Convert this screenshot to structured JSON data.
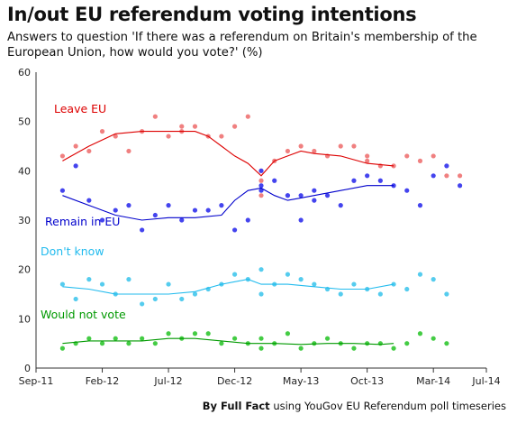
{
  "header": {
    "title": "In/out EU referendum voting intentions",
    "subtitle": "Answers to question 'If there was a referendum on Britain's membership of the European Union, how would you vote?' (%)"
  },
  "footer": {
    "brand": "By Full Fact",
    "text": " using YouGov EU Referendum poll timeseries"
  },
  "chart_data": {
    "type": "scatter",
    "x_ticks": [
      "Sep-11",
      "Feb-12",
      "Jul-12",
      "Dec-12",
      "May-13",
      "Oct-13",
      "Mar-14",
      "Jul-14"
    ],
    "xlim": [
      "Sep-11",
      "Jul-14"
    ],
    "ylim": [
      0,
      60
    ],
    "y_ticks": [
      0,
      10,
      20,
      30,
      40,
      50,
      60
    ],
    "grid": false,
    "series": [
      {
        "name": "Leave EU",
        "color": "#dd0000",
        "point_color": "#f08080",
        "points": [
          [
            "Nov-11",
            43
          ],
          [
            "Dec-11",
            45
          ],
          [
            "Jan-12",
            44
          ],
          [
            "Feb-12",
            48
          ],
          [
            "Mar-12",
            47
          ],
          [
            "Apr-12",
            44
          ],
          [
            "May-12",
            48
          ],
          [
            "Jun-12",
            51
          ],
          [
            "Jul-12",
            47
          ],
          [
            "Aug-12",
            48
          ],
          [
            "Aug-12",
            49
          ],
          [
            "Sep-12",
            49
          ],
          [
            "Oct-12",
            47
          ],
          [
            "Nov-12",
            47
          ],
          [
            "Dec-12",
            49
          ],
          [
            "Jan-13",
            51
          ],
          [
            "Feb-13",
            40
          ],
          [
            "Feb-13",
            38
          ],
          [
            "Feb-13",
            35
          ],
          [
            "Mar-13",
            42
          ],
          [
            "Apr-13",
            44
          ],
          [
            "May-13",
            45
          ],
          [
            "Jun-13",
            44
          ],
          [
            "Jul-13",
            43
          ],
          [
            "Aug-13",
            45
          ],
          [
            "Sep-13",
            45
          ],
          [
            "Oct-13",
            42
          ],
          [
            "Oct-13",
            43
          ],
          [
            "Nov-13",
            41
          ],
          [
            "Dec-13",
            41
          ],
          [
            "Jan-14",
            43
          ],
          [
            "Feb-14",
            42
          ],
          [
            "Mar-14",
            43
          ],
          [
            "Apr-14",
            39
          ],
          [
            "May-14",
            39
          ]
        ],
        "trend": [
          [
            "Nov-11",
            42
          ],
          [
            "Jan-12",
            45
          ],
          [
            "Mar-12",
            47.5
          ],
          [
            "May-12",
            48
          ],
          [
            "Jul-12",
            48
          ],
          [
            "Sep-12",
            48
          ],
          [
            "Oct-12",
            47
          ],
          [
            "Nov-12",
            45
          ],
          [
            "Dec-12",
            43
          ],
          [
            "Jan-13",
            41.5
          ],
          [
            "Feb-13",
            39
          ],
          [
            "Mar-13",
            42
          ],
          [
            "Apr-13",
            43
          ],
          [
            "May-13",
            44
          ],
          [
            "Jun-13",
            43.5
          ],
          [
            "Aug-13",
            43
          ],
          [
            "Oct-13",
            41.5
          ],
          [
            "Dec-13",
            41
          ]
        ]
      },
      {
        "name": "Remain in EU",
        "color": "#0000cc",
        "point_color": "#4444ee",
        "points": [
          [
            "Nov-11",
            36
          ],
          [
            "Dec-11",
            41
          ],
          [
            "Jan-12",
            34
          ],
          [
            "Feb-12",
            30
          ],
          [
            "Mar-12",
            32
          ],
          [
            "Apr-12",
            33
          ],
          [
            "May-12",
            28
          ],
          [
            "Jun-12",
            31
          ],
          [
            "Jul-12",
            33
          ],
          [
            "Aug-12",
            30
          ],
          [
            "Sep-12",
            32
          ],
          [
            "Oct-12",
            32
          ],
          [
            "Nov-12",
            33
          ],
          [
            "Dec-12",
            28
          ],
          [
            "Jan-13",
            30
          ],
          [
            "Feb-13",
            37
          ],
          [
            "Feb-13",
            40
          ],
          [
            "Feb-13",
            36
          ],
          [
            "Mar-13",
            38
          ],
          [
            "Apr-13",
            35
          ],
          [
            "Apr-13",
            35
          ],
          [
            "May-13",
            30
          ],
          [
            "May-13",
            35
          ],
          [
            "Jun-13",
            36
          ],
          [
            "Jun-13",
            34
          ],
          [
            "Jul-13",
            35
          ],
          [
            "Aug-13",
            33
          ],
          [
            "Sep-13",
            38
          ],
          [
            "Oct-13",
            39
          ],
          [
            "Nov-13",
            38
          ],
          [
            "Dec-13",
            37
          ],
          [
            "Jan-14",
            36
          ],
          [
            "Feb-14",
            33
          ],
          [
            "Mar-14",
            39
          ],
          [
            "Apr-14",
            41
          ],
          [
            "May-14",
            37
          ]
        ],
        "trend": [
          [
            "Nov-11",
            35
          ],
          [
            "Jan-12",
            33
          ],
          [
            "Mar-12",
            31
          ],
          [
            "May-12",
            30
          ],
          [
            "Jul-12",
            30.5
          ],
          [
            "Sep-12",
            30.5
          ],
          [
            "Nov-12",
            31
          ],
          [
            "Dec-12",
            34
          ],
          [
            "Jan-13",
            36
          ],
          [
            "Feb-13",
            36.5
          ],
          [
            "Mar-13",
            35
          ],
          [
            "Apr-13",
            34
          ],
          [
            "May-13",
            34.5
          ],
          [
            "Jun-13",
            35
          ],
          [
            "Aug-13",
            36
          ],
          [
            "Oct-13",
            37
          ],
          [
            "Dec-13",
            37
          ]
        ]
      },
      {
        "name": "Don't know",
        "color": "#22bbee",
        "point_color": "#55ccee",
        "points": [
          [
            "Nov-11",
            17
          ],
          [
            "Dec-11",
            14
          ],
          [
            "Jan-12",
            18
          ],
          [
            "Feb-12",
            17
          ],
          [
            "Mar-12",
            15
          ],
          [
            "Apr-12",
            18
          ],
          [
            "May-12",
            13
          ],
          [
            "Jun-12",
            14
          ],
          [
            "Jul-12",
            17
          ],
          [
            "Aug-12",
            14
          ],
          [
            "Sep-12",
            15
          ],
          [
            "Oct-12",
            16
          ],
          [
            "Nov-12",
            17
          ],
          [
            "Dec-12",
            19
          ],
          [
            "Jan-13",
            18
          ],
          [
            "Feb-13",
            20
          ],
          [
            "Feb-13",
            15
          ],
          [
            "Mar-13",
            17
          ],
          [
            "Apr-13",
            19
          ],
          [
            "May-13",
            18
          ],
          [
            "Jun-13",
            17
          ],
          [
            "Jul-13",
            16
          ],
          [
            "Aug-13",
            15
          ],
          [
            "Sep-13",
            17
          ],
          [
            "Oct-13",
            16
          ],
          [
            "Nov-13",
            15
          ],
          [
            "Dec-13",
            17
          ],
          [
            "Jan-14",
            16
          ],
          [
            "Feb-14",
            19
          ],
          [
            "Mar-14",
            18
          ],
          [
            "Apr-14",
            15
          ]
        ],
        "trend": [
          [
            "Nov-11",
            16.5
          ],
          [
            "Jan-12",
            16
          ],
          [
            "Mar-12",
            15
          ],
          [
            "May-12",
            15
          ],
          [
            "Jul-12",
            15
          ],
          [
            "Sep-12",
            15.5
          ],
          [
            "Nov-12",
            17
          ],
          [
            "Jan-13",
            18
          ],
          [
            "Feb-13",
            17
          ],
          [
            "Apr-13",
            17
          ],
          [
            "Jun-13",
            16.5
          ],
          [
            "Aug-13",
            16
          ],
          [
            "Oct-13",
            16
          ],
          [
            "Dec-13",
            17
          ]
        ]
      },
      {
        "name": "Would not vote",
        "color": "#009900",
        "point_color": "#44cc44",
        "points": [
          [
            "Nov-11",
            4
          ],
          [
            "Dec-11",
            5
          ],
          [
            "Jan-12",
            6
          ],
          [
            "Feb-12",
            5
          ],
          [
            "Mar-12",
            6
          ],
          [
            "Apr-12",
            5
          ],
          [
            "May-12",
            6
          ],
          [
            "Jun-12",
            5
          ],
          [
            "Jul-12",
            7
          ],
          [
            "Aug-12",
            6
          ],
          [
            "Sep-12",
            7
          ],
          [
            "Oct-12",
            7
          ],
          [
            "Nov-12",
            5
          ],
          [
            "Dec-12",
            6
          ],
          [
            "Jan-13",
            5
          ],
          [
            "Feb-13",
            6
          ],
          [
            "Feb-13",
            4
          ],
          [
            "Mar-13",
            5
          ],
          [
            "Apr-13",
            7
          ],
          [
            "May-13",
            4
          ],
          [
            "Jun-13",
            5
          ],
          [
            "Jul-13",
            6
          ],
          [
            "Aug-13",
            5
          ],
          [
            "Sep-13",
            4
          ],
          [
            "Oct-13",
            5
          ],
          [
            "Nov-13",
            5
          ],
          [
            "Dec-13",
            4
          ],
          [
            "Jan-14",
            5
          ],
          [
            "Feb-14",
            7
          ],
          [
            "Mar-14",
            6
          ],
          [
            "Apr-14",
            5
          ]
        ],
        "trend": [
          [
            "Nov-11",
            5
          ],
          [
            "Jan-12",
            5.5
          ],
          [
            "Mar-12",
            5.5
          ],
          [
            "May-12",
            5.5
          ],
          [
            "Jul-12",
            6
          ],
          [
            "Sep-12",
            6
          ],
          [
            "Nov-12",
            5.5
          ],
          [
            "Jan-13",
            5
          ],
          [
            "Mar-13",
            5
          ],
          [
            "May-13",
            4.8
          ],
          [
            "Jul-13",
            5
          ],
          [
            "Sep-13",
            5
          ],
          [
            "Nov-13",
            4.8
          ],
          [
            "Dec-13",
            5
          ]
        ]
      }
    ]
  }
}
